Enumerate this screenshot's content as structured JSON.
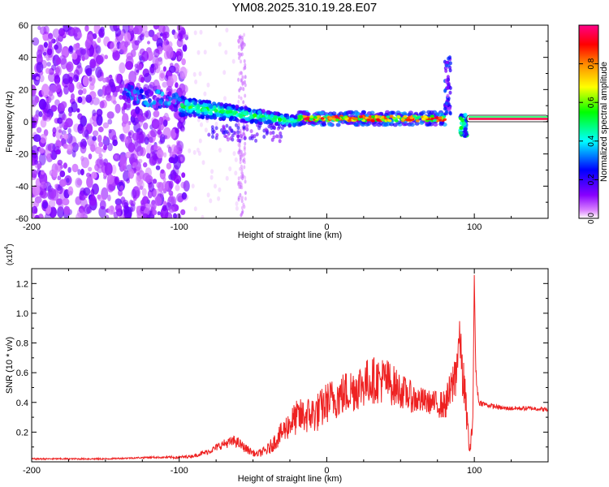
{
  "title": "YM08.2025.310.19.28.E07",
  "chart_data": [
    {
      "type": "heatmap",
      "xlabel": "Height of straight line (km)",
      "ylabel": "Frequency (Hz)",
      "xlim": [
        -200,
        150
      ],
      "ylim": [
        -60,
        60
      ],
      "xticks": [
        -200,
        -100,
        0,
        100
      ],
      "yticks": [
        -60,
        -40,
        -20,
        0,
        20,
        40,
        60
      ],
      "colorbar": {
        "label": "Normalized spectral amplitude",
        "range": [
          0,
          1
        ],
        "ticks": [
          0.0,
          0.2,
          0.4,
          0.6,
          0.8
        ],
        "tick_labels": [
          "0.0",
          "0.2",
          "0.4",
          "0.6",
          "0.8"
        ],
        "colormap": [
          "#ffffff",
          "#8800ff",
          "#0000ff",
          "#00ffff",
          "#00ff00",
          "#ffff00",
          "#ff8800",
          "#ff0000",
          "#ff0088"
        ]
      },
      "features": [
        {
          "name": "dispersed noise",
          "x_range": [
            -200,
            -95
          ],
          "y_range": [
            -60,
            60
          ],
          "amplitude": 0.12
        },
        {
          "name": "vertical streak",
          "x_range": [
            -60,
            -55
          ],
          "y_range": [
            -60,
            55
          ],
          "amplitude": 0.05
        },
        {
          "name": "descending band",
          "x_range": [
            -140,
            -100
          ],
          "y_start": 18,
          "y_end": 12,
          "amplitude": 0.3
        },
        {
          "name": "main band",
          "x_range": [
            -100,
            -20
          ],
          "y_start": 10,
          "y_end": 0,
          "amplitude": 0.35
        },
        {
          "name": "steady band",
          "x_range": [
            -20,
            80
          ],
          "y": 2,
          "amplitude": 0.85
        },
        {
          "name": "spike",
          "x": 82,
          "y_range": [
            5,
            40
          ],
          "amplitude": 0.25
        },
        {
          "name": "dip",
          "x": 93,
          "y_range": [
            -10,
            5
          ],
          "amplitude": 0.4
        },
        {
          "name": "flat line",
          "x_range": [
            95,
            150
          ],
          "y": 2,
          "amplitude": 0.95
        }
      ]
    },
    {
      "type": "line",
      "xlabel": "Height of straight line (km)",
      "ylabel": "SNR (10 * v/v)",
      "y_multiplier": "(x10",
      "y_multiplier_exp": "4",
      "xlim": [
        -200,
        150
      ],
      "ylim": [
        0,
        1.3
      ],
      "xticks": [
        -200,
        -100,
        0,
        100
      ],
      "yticks": [
        0.2,
        0.4,
        0.6,
        0.8,
        1.0,
        1.2
      ],
      "ytick_labels": [
        "0.2",
        "0.4",
        "0.6",
        "0.8",
        "1.0",
        "1.2"
      ],
      "color": "#ee2222",
      "series": [
        {
          "x": [
            -200,
            -180,
            -150,
            -120,
            -100,
            -90,
            -80,
            -70,
            -62,
            -55,
            -48,
            -40,
            -35,
            -30,
            -25,
            -20,
            -10,
            -5,
            0,
            10,
            20,
            30,
            40,
            50,
            60,
            70,
            80,
            85,
            88,
            90,
            92,
            95,
            97,
            99,
            100,
            101,
            103,
            110,
            120,
            130,
            140,
            150
          ],
          "y": [
            0.02,
            0.02,
            0.02,
            0.03,
            0.03,
            0.04,
            0.07,
            0.12,
            0.14,
            0.09,
            0.05,
            0.08,
            0.14,
            0.2,
            0.26,
            0.3,
            0.32,
            0.34,
            0.4,
            0.45,
            0.5,
            0.55,
            0.55,
            0.48,
            0.42,
            0.4,
            0.38,
            0.5,
            0.65,
            0.85,
            0.6,
            0.3,
            0.05,
            0.3,
            1.25,
            0.6,
            0.4,
            0.38,
            0.36,
            0.36,
            0.36,
            0.35
          ],
          "noise_amplitude": [
            0.005,
            0.005,
            0.005,
            0.005,
            0.01,
            0.01,
            0.02,
            0.03,
            0.04,
            0.03,
            0.02,
            0.04,
            0.06,
            0.08,
            0.1,
            0.12,
            0.13,
            0.14,
            0.14,
            0.15,
            0.16,
            0.16,
            0.16,
            0.12,
            0.1,
            0.08,
            0.1,
            0.15,
            0.2,
            0.1,
            0.2,
            0.1,
            0.05,
            0.05,
            0.02,
            0.05,
            0.02,
            0.015,
            0.015,
            0.015,
            0.015,
            0.015
          ]
        }
      ]
    }
  ]
}
